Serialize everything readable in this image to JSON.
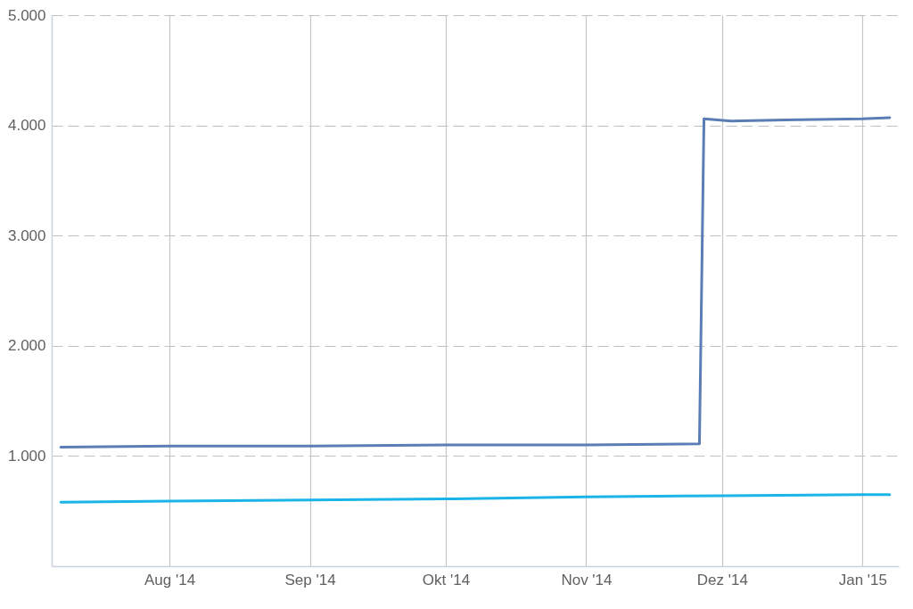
{
  "chart_data": {
    "type": "line",
    "xlim": [
      "2014-07-06",
      "2015-01-09"
    ],
    "xticks": [
      {
        "value": "2014-08-01",
        "label": "Aug '14"
      },
      {
        "value": "2014-09-01",
        "label": "Sep '14"
      },
      {
        "value": "2014-10-01",
        "label": "Okt '14"
      },
      {
        "value": "2014-11-01",
        "label": "Nov '14"
      },
      {
        "value": "2014-12-01",
        "label": "Dez '14"
      },
      {
        "value": "2015-01-01",
        "label": "Jan '15"
      }
    ],
    "ylim": [
      0,
      5000
    ],
    "yticks": [
      {
        "value": 1000,
        "label": "1.000"
      },
      {
        "value": 2000,
        "label": "2.000"
      },
      {
        "value": 3000,
        "label": "3.000"
      },
      {
        "value": 4000,
        "label": "4.000"
      },
      {
        "value": 5000,
        "label": "5.000"
      }
    ],
    "grid": true,
    "series": [
      {
        "color": "#5a7db5",
        "x": [
          "2014-07-08",
          "2014-08-01",
          "2014-09-01",
          "2014-10-01",
          "2014-11-01",
          "2014-11-26",
          "2014-11-27",
          "2014-12-03",
          "2014-12-15",
          "2015-01-01",
          "2015-01-07"
        ],
        "values": [
          1080,
          1090,
          1090,
          1100,
          1100,
          1110,
          4060,
          4040,
          4050,
          4060,
          4070
        ]
      },
      {
        "color": "#1ab4e8",
        "x": [
          "2014-07-08",
          "2014-08-01",
          "2014-09-01",
          "2014-10-01",
          "2014-11-01",
          "2014-12-01",
          "2015-01-01",
          "2015-01-07"
        ],
        "values": [
          580,
          590,
          600,
          610,
          630,
          640,
          650,
          650
        ]
      }
    ]
  }
}
